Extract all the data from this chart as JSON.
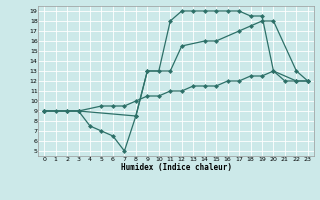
{
  "xlabel": "Humidex (Indice chaleur)",
  "bg_color": "#cce9e9",
  "grid_color": "#ffffff",
  "line_color": "#2d7068",
  "markersize": 2.5,
  "linewidth": 0.9,
  "xlim": [
    -0.5,
    23.5
  ],
  "ylim": [
    4.5,
    19.5
  ],
  "xticks": [
    0,
    1,
    2,
    3,
    4,
    5,
    6,
    7,
    8,
    9,
    10,
    11,
    12,
    13,
    14,
    15,
    16,
    17,
    18,
    19,
    20,
    21,
    22,
    23
  ],
  "yticks": [
    5,
    6,
    7,
    8,
    9,
    10,
    11,
    12,
    13,
    14,
    15,
    16,
    17,
    18,
    19
  ],
  "line1_x": [
    0,
    1,
    2,
    3,
    4,
    5,
    6,
    7,
    8,
    9,
    10,
    11,
    12,
    13,
    14,
    15,
    16,
    17,
    18,
    19,
    20,
    21,
    22,
    23
  ],
  "line1_y": [
    9,
    9,
    9,
    9,
    7.5,
    7,
    6.5,
    5,
    8.5,
    13,
    13,
    18,
    19,
    19,
    19,
    19,
    19,
    19,
    18.5,
    18.5,
    13,
    12,
    12,
    12
  ],
  "line2_x": [
    0,
    2,
    3,
    5,
    6,
    7,
    8,
    9,
    10,
    11,
    12,
    13,
    14,
    15,
    16,
    17,
    18,
    19,
    20,
    22,
    23
  ],
  "line2_y": [
    9,
    9,
    9,
    9.5,
    9.5,
    9.5,
    10,
    10.5,
    10.5,
    11,
    11,
    11.5,
    11.5,
    11.5,
    12,
    12,
    12.5,
    12.5,
    13,
    12,
    12
  ],
  "line3_x": [
    0,
    3,
    8,
    9,
    11,
    12,
    14,
    15,
    17,
    18,
    19,
    20,
    22,
    23
  ],
  "line3_y": [
    9,
    9,
    8.5,
    13,
    13,
    15.5,
    16,
    16,
    17,
    17.5,
    18,
    18,
    13,
    12
  ]
}
